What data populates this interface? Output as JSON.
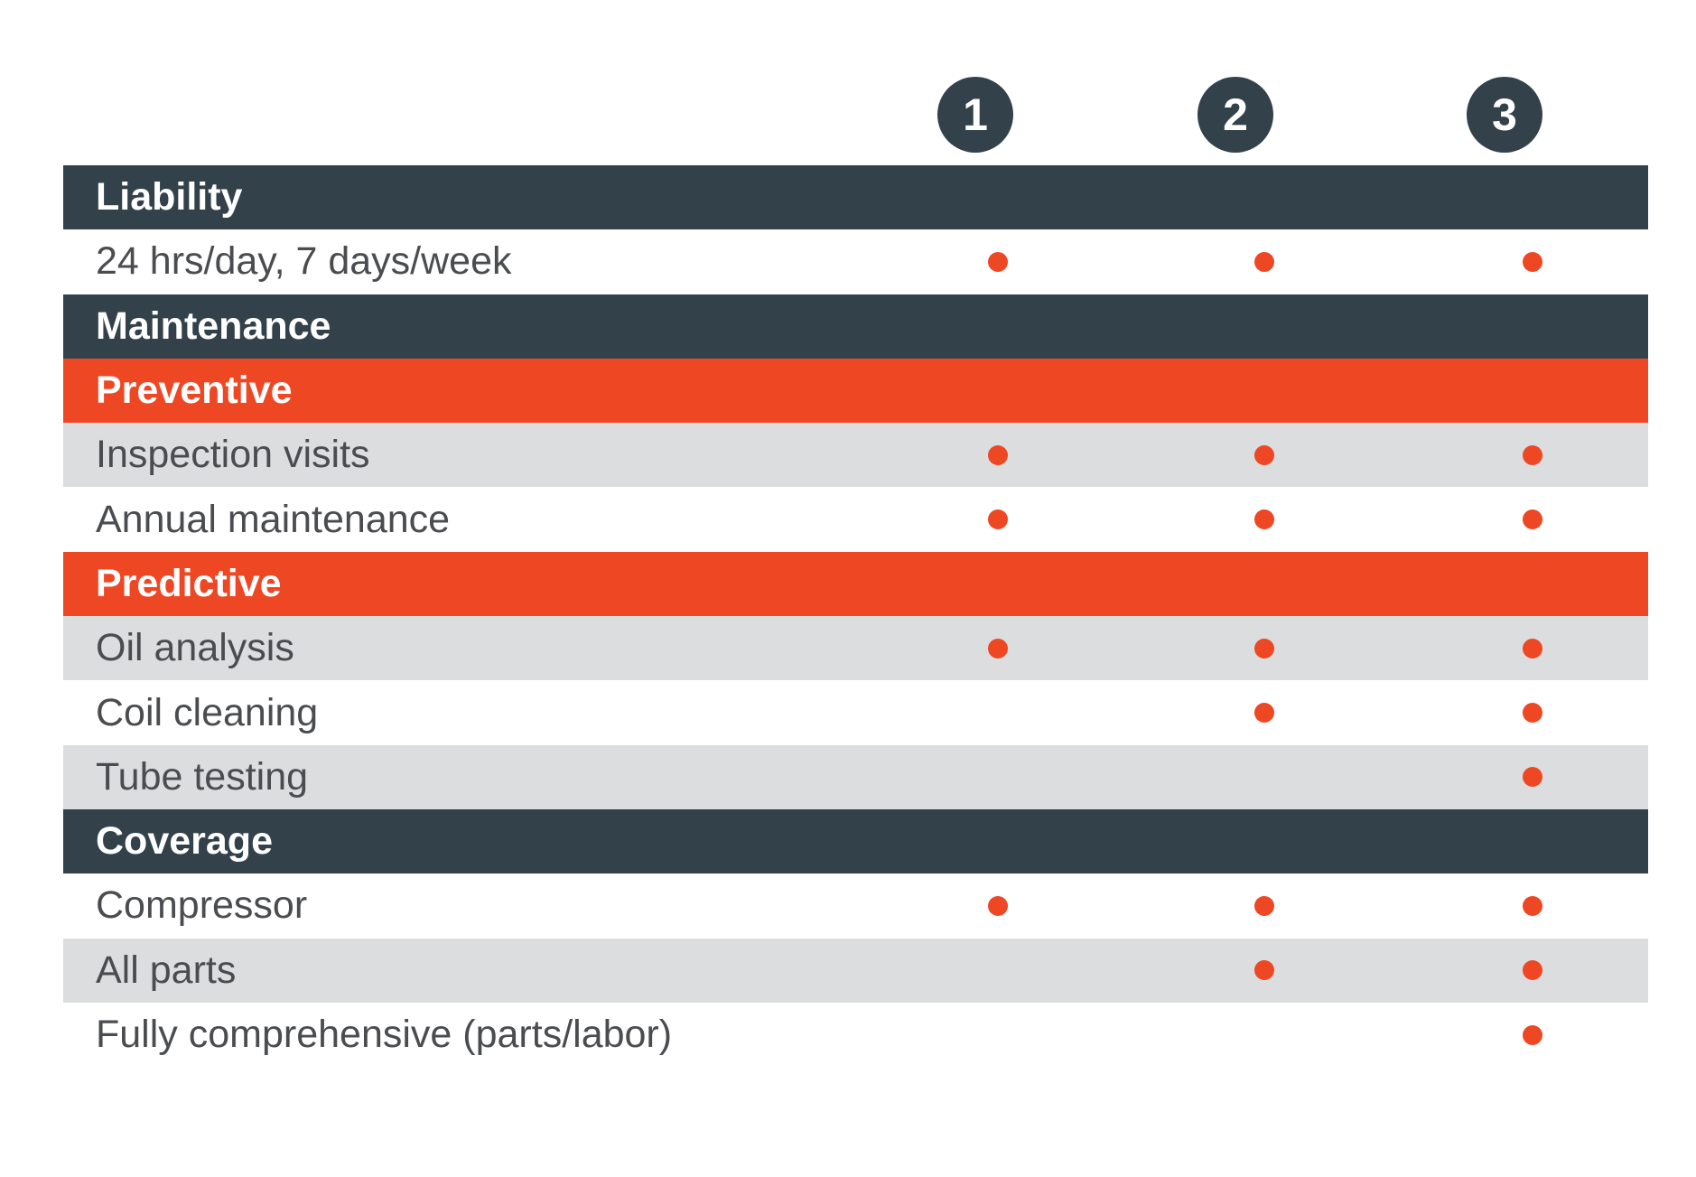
{
  "plans": [
    "1",
    "2",
    "3"
  ],
  "accent_color": "#ee4724",
  "section_color": "#33414b",
  "rows": [
    {
      "type": "section",
      "label": "Liability"
    },
    {
      "type": "item",
      "label": "24 hrs/day, 7 days/week",
      "shade": "white",
      "plans": [
        true,
        true,
        true
      ]
    },
    {
      "type": "section",
      "label": "Maintenance"
    },
    {
      "type": "subsection",
      "label": "Preventive"
    },
    {
      "type": "item",
      "label": "Inspection visits",
      "shade": "grey",
      "plans": [
        true,
        true,
        true
      ]
    },
    {
      "type": "item",
      "label": "Annual maintenance",
      "shade": "white",
      "plans": [
        true,
        true,
        true
      ]
    },
    {
      "type": "subsection",
      "label": "Predictive"
    },
    {
      "type": "item",
      "label": "Oil analysis",
      "shade": "grey",
      "plans": [
        true,
        true,
        true
      ]
    },
    {
      "type": "item",
      "label": "Coil cleaning",
      "shade": "white",
      "plans": [
        false,
        true,
        true
      ]
    },
    {
      "type": "item",
      "label": "Tube testing",
      "shade": "grey",
      "plans": [
        false,
        false,
        true
      ]
    },
    {
      "type": "section",
      "label": "Coverage"
    },
    {
      "type": "item",
      "label": "Compressor",
      "shade": "white",
      "plans": [
        true,
        true,
        true
      ]
    },
    {
      "type": "item",
      "label": "All parts",
      "shade": "grey",
      "plans": [
        false,
        true,
        true
      ]
    },
    {
      "type": "item",
      "label": "Fully comprehensive (parts/labor)",
      "shade": "white",
      "plans": [
        false,
        false,
        true
      ]
    }
  ]
}
